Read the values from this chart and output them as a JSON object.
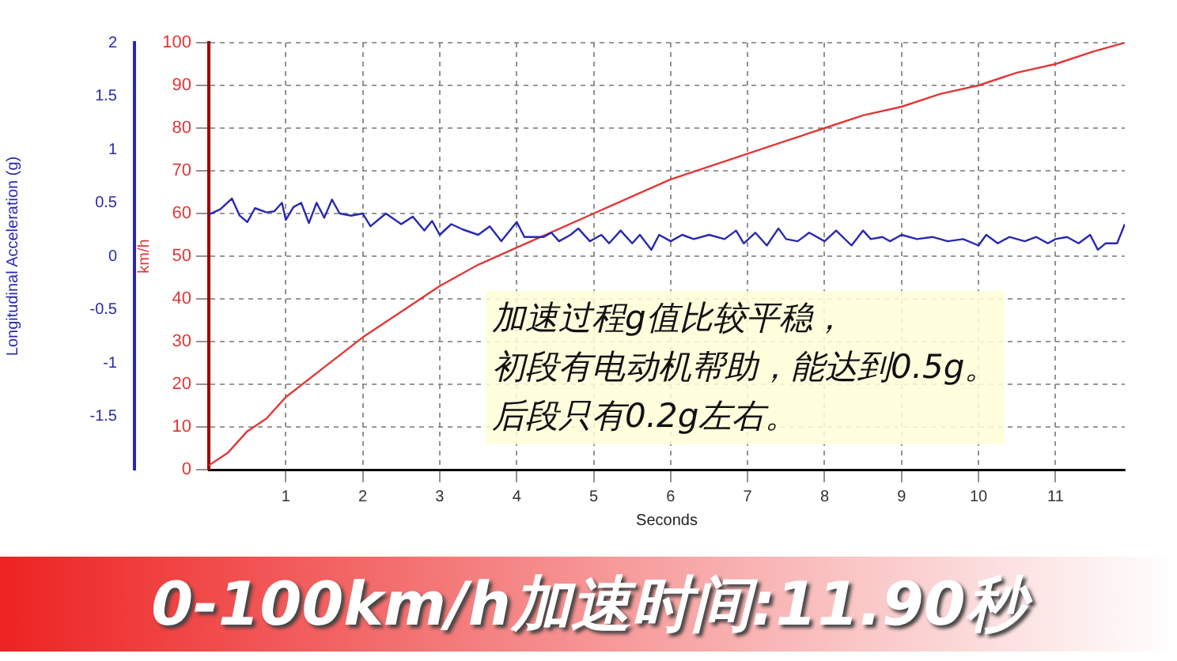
{
  "chart_data": {
    "type": "line",
    "title": "0-100km/h加速时间:11.90秒",
    "xlabel": "Seconds",
    "ylabel": "Longitudinal Acceleration (g)",
    "y2label": "km/h",
    "annotations": [
      "加速过程g值比较平稳，",
      "初段有电动机帮助，能达到0.5g。",
      "后段只有0.2g左右。"
    ],
    "xlim": [
      0,
      11.9
    ],
    "xticks": [
      1,
      2,
      3,
      4,
      5,
      6,
      7,
      8,
      9,
      10,
      11
    ],
    "ylim": [
      -2,
      2
    ],
    "yticks": [
      -1.5,
      -1,
      -0.5,
      0,
      0.5,
      1,
      1.5,
      2
    ],
    "y2lim": [
      0,
      100
    ],
    "y2ticks": [
      0,
      10,
      20,
      30,
      40,
      50,
      60,
      70,
      80,
      90,
      100
    ],
    "grid": true,
    "legend": false,
    "marker": "none",
    "line_style": "solid",
    "series": [
      {
        "color": "#2828b0",
        "axis": "y",
        "x": [
          0,
          0.15,
          0.3,
          0.4,
          0.5,
          0.6,
          0.75,
          0.85,
          0.95,
          1.0,
          1.1,
          1.2,
          1.3,
          1.4,
          1.5,
          1.6,
          1.7,
          1.85,
          2.0,
          2.1,
          2.3,
          2.5,
          2.65,
          2.8,
          2.9,
          3.0,
          3.15,
          3.3,
          3.5,
          3.65,
          3.8,
          4.0,
          4.1,
          4.35,
          4.45,
          4.55,
          4.7,
          4.8,
          4.95,
          5.1,
          5.2,
          5.35,
          5.5,
          5.6,
          5.75,
          5.85,
          6.0,
          6.15,
          6.3,
          6.5,
          6.7,
          6.85,
          6.95,
          7.1,
          7.25,
          7.4,
          7.5,
          7.65,
          7.8,
          8.0,
          8.15,
          8.35,
          8.5,
          8.6,
          8.75,
          8.85,
          9.0,
          9.2,
          9.4,
          9.6,
          9.8,
          10.0,
          10.1,
          10.25,
          10.4,
          10.6,
          10.75,
          10.9,
          11.0,
          11.15,
          11.3,
          11.45,
          11.55,
          11.65,
          11.8,
          11.9
        ],
        "values": [
          0.39,
          0.44,
          0.54,
          0.38,
          0.32,
          0.45,
          0.41,
          0.42,
          0.5,
          0.34,
          0.46,
          0.5,
          0.31,
          0.5,
          0.36,
          0.53,
          0.4,
          0.38,
          0.4,
          0.28,
          0.4,
          0.3,
          0.37,
          0.24,
          0.33,
          0.2,
          0.3,
          0.25,
          0.2,
          0.28,
          0.14,
          0.32,
          0.18,
          0.18,
          0.22,
          0.14,
          0.2,
          0.26,
          0.14,
          0.2,
          0.12,
          0.24,
          0.12,
          0.2,
          0.06,
          0.2,
          0.14,
          0.2,
          0.16,
          0.2,
          0.16,
          0.24,
          0.12,
          0.22,
          0.1,
          0.26,
          0.16,
          0.14,
          0.22,
          0.14,
          0.24,
          0.1,
          0.24,
          0.16,
          0.18,
          0.14,
          0.2,
          0.16,
          0.18,
          0.14,
          0.16,
          0.1,
          0.2,
          0.12,
          0.18,
          0.14,
          0.18,
          0.12,
          0.16,
          0.18,
          0.12,
          0.2,
          0.06,
          0.12,
          0.12,
          0.3
        ]
      },
      {
        "color": "#e03838",
        "axis": "y2",
        "x": [
          0,
          0.25,
          0.5,
          0.75,
          1,
          1.5,
          2,
          2.5,
          3,
          3.5,
          4,
          4.5,
          5,
          5.5,
          6,
          6.5,
          7,
          7.5,
          8,
          8.5,
          9,
          9.5,
          10,
          10.5,
          11,
          11.5,
          11.9
        ],
        "values": [
          1,
          4,
          9,
          12,
          17,
          24,
          31,
          37,
          43,
          48,
          52,
          56,
          60,
          64,
          68,
          71,
          74,
          77,
          80,
          83,
          85,
          88,
          90,
          93,
          95,
          98,
          100
        ]
      }
    ]
  }
}
